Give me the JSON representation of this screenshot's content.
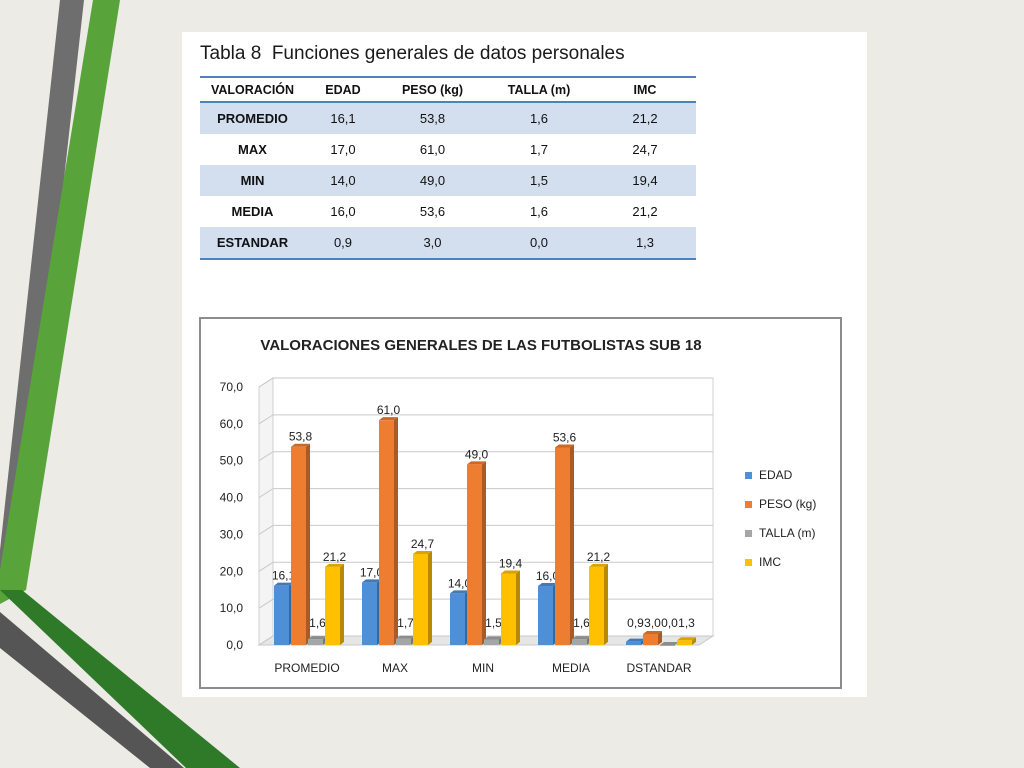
{
  "table": {
    "title": "Tabla 8  Funciones generales de datos personales",
    "headers": [
      "VALORACIÓN",
      "EDAD",
      "PESO (kg)",
      "TALLA (m)",
      "IMC"
    ],
    "rows": [
      [
        "PROMEDIO",
        "16,1",
        "53,8",
        "1,6",
        "21,2"
      ],
      [
        "MAX",
        "17,0",
        "61,0",
        "1,7",
        "24,7"
      ],
      [
        "MIN",
        "14,0",
        "49,0",
        "1,5",
        "19,4"
      ],
      [
        "MEDIA",
        "16,0",
        "53,6",
        "1,6",
        "21,2"
      ],
      [
        "ESTANDAR",
        "0,9",
        "3,0",
        "0,0",
        "1,3"
      ]
    ]
  },
  "chart_data": {
    "type": "bar",
    "title": "VALORACIONES GENERALES  DE LAS FUTBOLISTAS SUB 18",
    "categories": [
      "PROMEDIO",
      "MAX",
      "MIN",
      "MEDIA",
      "DSTANDAR"
    ],
    "series": [
      {
        "name": "EDAD",
        "color": "#4f8fd6",
        "values": [
          16.1,
          17.0,
          14.0,
          16.0,
          0.9
        ]
      },
      {
        "name": "PESO (kg)",
        "color": "#ed7d31",
        "values": [
          53.8,
          61.0,
          49.0,
          53.6,
          3.0
        ]
      },
      {
        "name": "TALLA (m)",
        "color": "#a5a5a5",
        "values": [
          1.6,
          1.7,
          1.5,
          1.6,
          0.0
        ]
      },
      {
        "name": "IMC",
        "color": "#ffc000",
        "values": [
          21.2,
          24.7,
          19.4,
          21.2,
          1.3
        ]
      }
    ],
    "data_labels": [
      [
        "16,1",
        "17,0",
        "14,0",
        "16,0",
        "0,9"
      ],
      [
        "53,8",
        "61,0",
        "49,0",
        "53,6",
        "3,0"
      ],
      [
        "1,6",
        "1,7",
        "1,5",
        "1,6",
        "0,0"
      ],
      [
        "21,2",
        "24,7",
        "19,4",
        "21,2",
        "1,3"
      ]
    ],
    "yticks": [
      "0,0",
      "10,0",
      "20,0",
      "30,0",
      "40,0",
      "50,0",
      "60,0",
      "70,0"
    ],
    "ylim": [
      0,
      70
    ],
    "ytick_step": 10,
    "grid": true,
    "legend_position": "right"
  }
}
